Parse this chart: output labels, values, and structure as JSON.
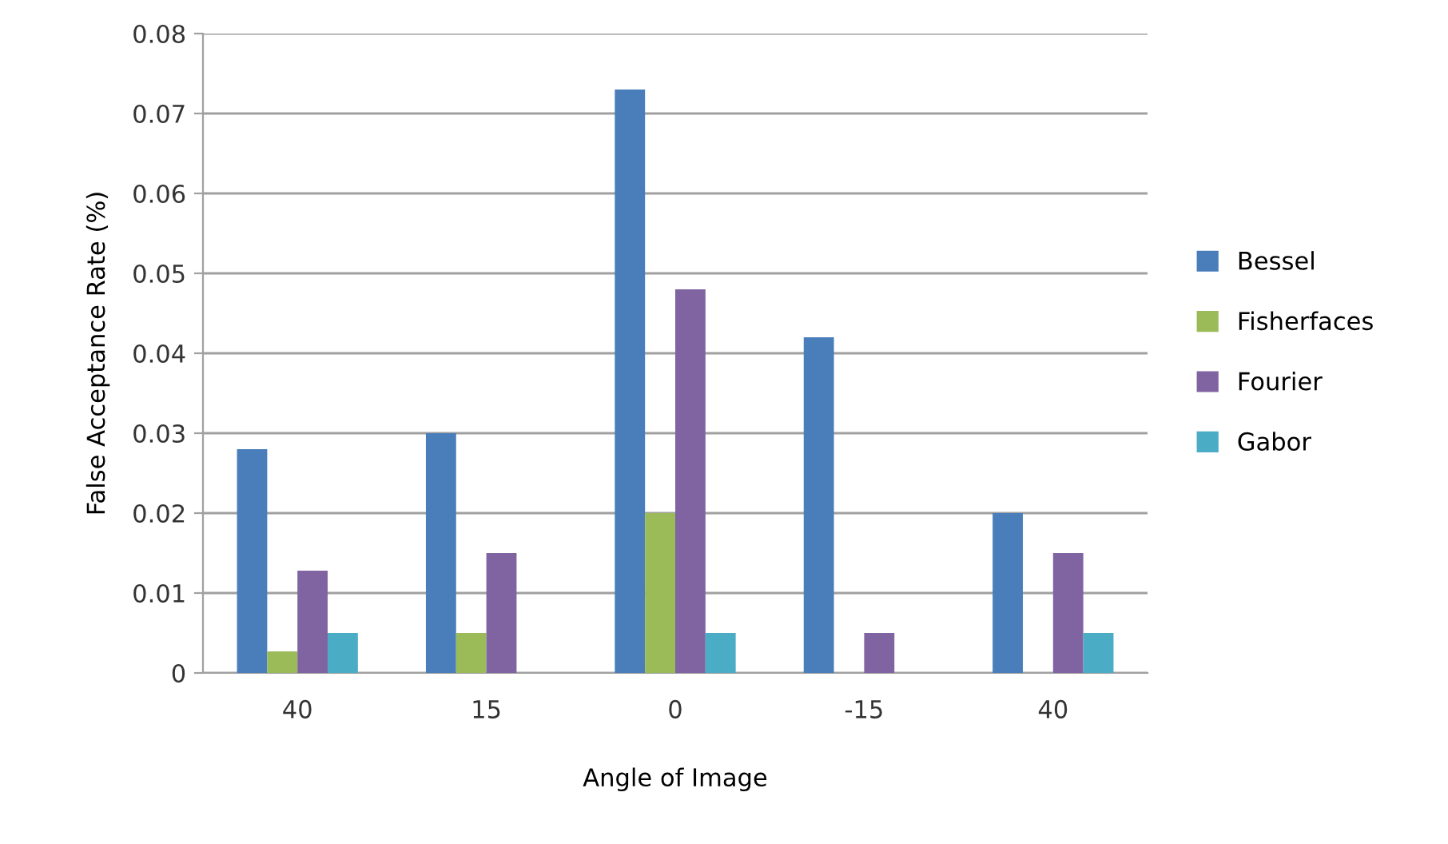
{
  "chart_data": {
    "type": "bar",
    "xlabel": "Angle of Image",
    "ylabel": "False Acceptance Rate (%)",
    "categories": [
      "40",
      "15",
      "0",
      "-15",
      "40"
    ],
    "series": [
      {
        "name": "Bessel",
        "color": "#4a7ebb",
        "values": [
          0.028,
          0.03,
          0.073,
          0.042,
          0.02
        ]
      },
      {
        "name": "Fisherfaces",
        "color": "#9bbb59",
        "values": [
          0.0027,
          0.005,
          0.02,
          null,
          null
        ]
      },
      {
        "name": "Fourier",
        "color": "#8064a2",
        "values": [
          0.0128,
          0.015,
          0.048,
          0.005,
          0.015
        ]
      },
      {
        "name": "Gabor",
        "color": "#4bacc6",
        "values": [
          0.005,
          null,
          0.005,
          null,
          0.005
        ]
      }
    ],
    "ylim": [
      0,
      0.08
    ],
    "yticks": [
      {
        "value": 0,
        "label": "0"
      },
      0.01,
      0.02,
      0.03,
      0.04,
      0.05,
      0.06,
      0.07,
      0.08
    ],
    "grid": "y",
    "legend": "right"
  }
}
